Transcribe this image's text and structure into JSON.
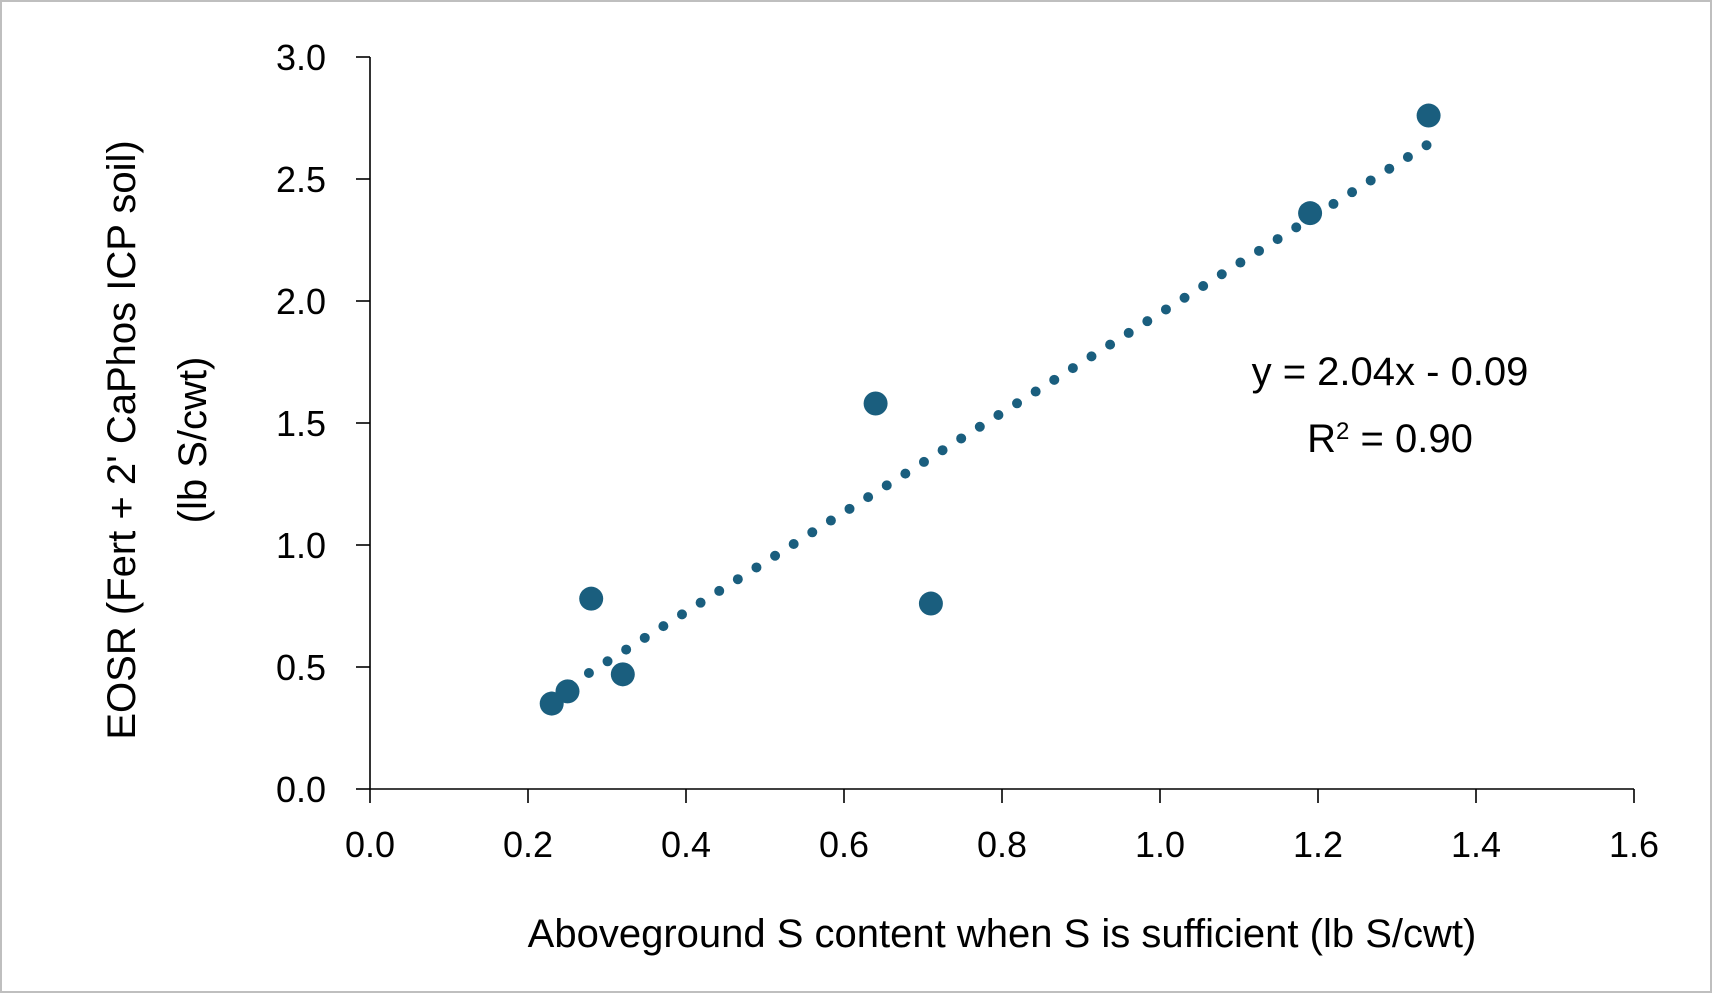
{
  "chart_data": {
    "type": "scatter",
    "title": "",
    "xlabel": "Aboveground S content when S is sufficient (lb S/cwt)",
    "ylabel_line1": "EOSR (Fert + 2' CaPhos ICP soil)",
    "ylabel_line2": "(lb S/cwt)",
    "xlim": [
      0.0,
      1.6
    ],
    "ylim": [
      0.0,
      3.0
    ],
    "x_ticks": [
      0.0,
      0.2,
      0.4,
      0.6,
      0.8,
      1.0,
      1.2,
      1.4,
      1.6
    ],
    "x_tick_labels": [
      "0.0",
      "0.2",
      "0.4",
      "0.6",
      "0.8",
      "1.0",
      "1.2",
      "1.4",
      "1.6"
    ],
    "y_ticks": [
      0.0,
      0.5,
      1.0,
      1.5,
      2.0,
      2.5,
      3.0
    ],
    "y_tick_labels": [
      "0.0",
      "0.5",
      "1.0",
      "1.5",
      "2.0",
      "2.5",
      "3.0"
    ],
    "grid": false,
    "legend": "none",
    "series": [
      {
        "color": "#1a5e7e",
        "points": [
          {
            "x": 0.23,
            "y": 0.35
          },
          {
            "x": 0.25,
            "y": 0.4
          },
          {
            "x": 0.28,
            "y": 0.78
          },
          {
            "x": 0.32,
            "y": 0.47
          },
          {
            "x": 0.64,
            "y": 1.58
          },
          {
            "x": 0.71,
            "y": 0.76
          },
          {
            "x": 1.19,
            "y": 2.36
          },
          {
            "x": 1.34,
            "y": 2.76
          }
        ]
      }
    ],
    "trendline": {
      "type": "linear",
      "style": "dotted",
      "color": "#1a5e7e",
      "slope": 2.04,
      "intercept": -0.09,
      "x_range": [
        0.23,
        1.34
      ]
    },
    "annotation": {
      "equation": "y = 2.04x - 0.09",
      "r2_prefix": "R",
      "r2_sup": "2",
      "r2_suffix": " = 0.90"
    }
  }
}
